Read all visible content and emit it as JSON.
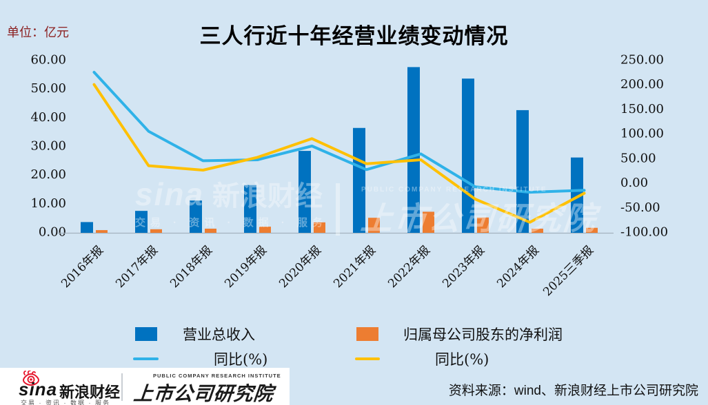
{
  "header": {
    "unit_label": "单位：亿元",
    "title": "三人行近十年经营业绩变动情况"
  },
  "chart_data": {
    "type": "bar",
    "subtype": "bar+line dual-axis combo",
    "categories": [
      "2016年报",
      "2017年报",
      "2018年报",
      "2019年报",
      "2020年报",
      "2021年报",
      "2022年报",
      "2023年报",
      "2024年报",
      "2025三季报"
    ],
    "series": [
      {
        "key": "revenue",
        "name": "营业总收入",
        "type": "bar",
        "axis": "left",
        "color": "#0072C0",
        "values": [
          3.5,
          7.4,
          11.0,
          16.4,
          28.3,
          36.3,
          57.5,
          53.5,
          42.5,
          26.0
        ]
      },
      {
        "key": "net-profit",
        "name": "归属母公司股东的净利润",
        "type": "bar",
        "axis": "left",
        "color": "#ED7D31",
        "values": [
          0.7,
          1.0,
          1.2,
          1.9,
          3.4,
          5.0,
          7.1,
          5.1,
          1.2,
          1.5
        ]
      },
      {
        "key": "revenue-yoy",
        "name": "同比(%)",
        "type": "line",
        "axis": "right",
        "color": "#2FB2E8",
        "values": [
          225,
          105,
          45,
          47,
          75,
          27,
          59,
          -8,
          -19,
          -15
        ]
      },
      {
        "key": "net-profit-yoy",
        "name": "同比(%)",
        "type": "line",
        "axis": "right",
        "color": "#FFC000",
        "values": [
          200,
          35,
          26,
          52,
          90,
          39,
          47,
          -33,
          -80,
          -21
        ]
      }
    ],
    "left_axis": {
      "min": 0,
      "max": 60,
      "tick_labels": [
        "60.00",
        "50.00",
        "40.00",
        "30.00",
        "20.00",
        "10.00",
        "0.00"
      ]
    },
    "right_axis": {
      "min": -100,
      "max": 250,
      "tick_labels": [
        "250.00",
        "200.00",
        "150.00",
        "100.00",
        "50.00",
        "0.00",
        "-50.00",
        "-100.00"
      ]
    },
    "grid": false,
    "legend_position": "bottom",
    "title": "三人行近十年经营业绩变动情况",
    "ylabel_left_unit": "亿元",
    "ylabel_right_unit": "%"
  },
  "watermark": {
    "sina_script": "sina",
    "sina_name": "新浪财经",
    "tagline": "交易 · 资讯 · 数据 · 服务",
    "institute_en": "PUBLIC COMPANY RESEARCH INSTITUTE",
    "institute": "上市公司研究院"
  },
  "footer": {
    "sina_script": "sina",
    "sina_name": "新浪财经",
    "tagline": "交易 · 资讯 · 数据 · 服务",
    "institute_en": "PUBLIC COMPANY RESEARCH INSTITUTE",
    "institute": "上市公司研究院",
    "source": "资料来源：wind、新浪财经上市公司研究院"
  }
}
